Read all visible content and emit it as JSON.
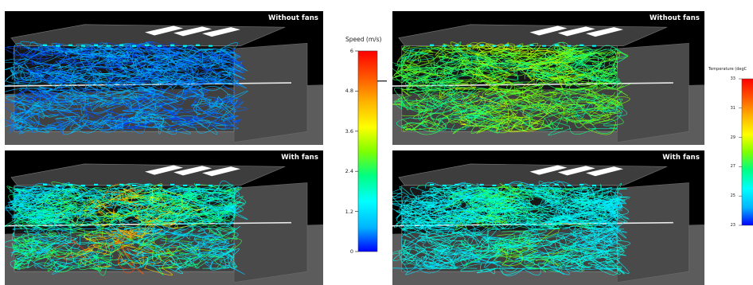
{
  "panels": {
    "speed_without": {
      "label": "Without fans"
    },
    "temp_without": {
      "label": "Without fans"
    },
    "speed_with": {
      "label": "With fans"
    },
    "temp_with": {
      "label": "With fans"
    }
  },
  "speed_legend": {
    "title": "Speed (m/s)",
    "ticks": [
      "6",
      "4.8",
      "3.6",
      "2.4",
      "1.2",
      "0"
    ],
    "indicator_value": 5.1
  },
  "temp_legend": {
    "title": "Temperature (degC",
    "ticks": [
      "33",
      "31",
      "29",
      "27",
      "25",
      "23"
    ]
  },
  "colors": {
    "scale": [
      "#0000ff",
      "#00b4ff",
      "#00ffff",
      "#00ff80",
      "#80ff00",
      "#ffff00",
      "#ffb000",
      "#ff5000",
      "#ff0000"
    ]
  }
}
